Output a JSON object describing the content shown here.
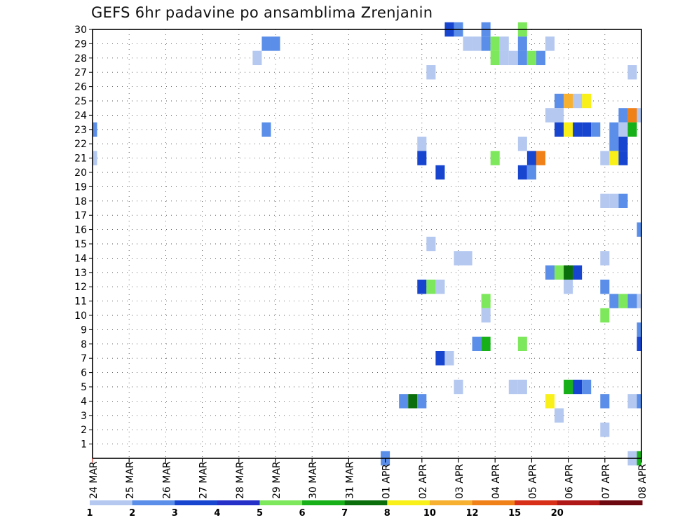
{
  "chart_data": {
    "type": "heatmap",
    "title": "GEFS 6hr padavine po ansamblima Zrenjanin",
    "xlabel": "",
    "ylabel": "",
    "x_unit": "6-hour step (0 = 24 MAR 00Z)",
    "xlim": [
      0,
      60
    ],
    "ylim": [
      0,
      30
    ],
    "x_ticks": [
      {
        "step": 0,
        "label": "24 MAR"
      },
      {
        "step": 4,
        "label": "25 MAR"
      },
      {
        "step": 8,
        "label": "26 MAR"
      },
      {
        "step": 12,
        "label": "27 MAR"
      },
      {
        "step": 16,
        "label": "28 MAR"
      },
      {
        "step": 20,
        "label": "29 MAR"
      },
      {
        "step": 24,
        "label": "30 MAR"
      },
      {
        "step": 28,
        "label": "31 MAR"
      },
      {
        "step": 32,
        "label": "01 APR"
      },
      {
        "step": 36,
        "label": "02 APR"
      },
      {
        "step": 40,
        "label": "03 APR"
      },
      {
        "step": 44,
        "label": "04 APR"
      },
      {
        "step": 48,
        "label": "05 APR"
      },
      {
        "step": 52,
        "label": "06 APR"
      },
      {
        "step": 56,
        "label": "07 APR"
      },
      {
        "step": 60,
        "label": "08 APR"
      }
    ],
    "y_ticks": [
      1,
      2,
      3,
      4,
      5,
      6,
      7,
      8,
      9,
      10,
      11,
      12,
      13,
      14,
      15,
      16,
      17,
      18,
      19,
      20,
      21,
      22,
      23,
      24,
      25,
      26,
      27,
      28,
      29,
      30
    ],
    "grid": true,
    "legend_position": "bottom",
    "colorbar": {
      "labels": [
        "1",
        "2",
        "3",
        "4",
        "5",
        "6",
        "7",
        "8",
        "10",
        "12",
        "15",
        "20"
      ],
      "colors": [
        "#b4c8f0",
        "#5a8ee8",
        "#1845d0",
        "#2430c8",
        "#7ee85c",
        "#18b018",
        "#0a6e0a",
        "#f8f018",
        "#f8b030",
        "#f08018",
        "#d83018",
        "#b01818",
        "#6e0810"
      ]
    },
    "cells_legend": "each cell: [x_step, member, color_index (0 = 1-2, 1 = 2-3, 2 = 3-4, 3 = 4-5, 4 = 5-6, 5 = 6-7, 6 = 7-8, 7 = 8-10, 8 = 10-12, 9 = 12-15)]",
    "cells": [
      [
        0,
        23,
        1
      ],
      [
        0,
        21,
        0
      ],
      [
        18,
        28,
        0
      ],
      [
        19,
        29,
        1
      ],
      [
        20,
        29,
        1
      ],
      [
        19,
        23,
        1
      ],
      [
        32,
        0,
        1
      ],
      [
        60,
        0,
        5
      ],
      [
        59,
        0,
        0
      ],
      [
        39,
        30,
        2
      ],
      [
        40,
        30,
        1
      ],
      [
        43,
        30,
        1
      ],
      [
        47,
        30,
        4
      ],
      [
        41,
        29,
        0
      ],
      [
        42,
        29,
        0
      ],
      [
        43,
        29,
        1
      ],
      [
        44,
        29,
        4
      ],
      [
        45,
        29,
        0
      ],
      [
        47,
        29,
        1
      ],
      [
        50,
        29,
        0
      ],
      [
        44,
        28,
        4
      ],
      [
        45,
        28,
        0
      ],
      [
        46,
        28,
        0
      ],
      [
        47,
        28,
        1
      ],
      [
        48,
        28,
        4
      ],
      [
        49,
        28,
        1
      ],
      [
        37,
        27,
        0
      ],
      [
        59,
        27,
        0
      ],
      [
        51,
        25,
        1
      ],
      [
        52,
        25,
        8
      ],
      [
        53,
        25,
        0
      ],
      [
        54,
        25,
        7
      ],
      [
        50,
        24,
        0
      ],
      [
        51,
        24,
        0
      ],
      [
        58,
        24,
        1
      ],
      [
        59,
        24,
        9
      ],
      [
        60,
        24,
        0
      ],
      [
        51,
        23,
        2
      ],
      [
        52,
        23,
        7
      ],
      [
        53,
        23,
        2
      ],
      [
        54,
        23,
        2
      ],
      [
        55,
        23,
        1
      ],
      [
        57,
        23,
        1
      ],
      [
        58,
        23,
        0
      ],
      [
        59,
        23,
        5
      ],
      [
        36,
        22,
        0
      ],
      [
        47,
        22,
        0
      ],
      [
        57,
        22,
        1
      ],
      [
        58,
        22,
        2
      ],
      [
        36,
        21,
        2
      ],
      [
        44,
        21,
        4
      ],
      [
        48,
        21,
        2
      ],
      [
        49,
        21,
        9
      ],
      [
        56,
        21,
        0
      ],
      [
        57,
        21,
        7
      ],
      [
        58,
        21,
        2
      ],
      [
        38,
        20,
        2
      ],
      [
        47,
        20,
        2
      ],
      [
        48,
        20,
        1
      ],
      [
        56,
        18,
        0
      ],
      [
        57,
        18,
        0
      ],
      [
        58,
        18,
        1
      ],
      [
        60,
        16,
        1
      ],
      [
        37,
        15,
        0
      ],
      [
        40,
        14,
        0
      ],
      [
        41,
        14,
        0
      ],
      [
        56,
        14,
        0
      ],
      [
        50,
        13,
        1
      ],
      [
        51,
        13,
        4
      ],
      [
        52,
        13,
        6
      ],
      [
        53,
        13,
        2
      ],
      [
        36,
        12,
        2
      ],
      [
        37,
        12,
        4
      ],
      [
        38,
        12,
        0
      ],
      [
        52,
        12,
        0
      ],
      [
        56,
        12,
        1
      ],
      [
        43,
        11,
        4
      ],
      [
        57,
        11,
        1
      ],
      [
        58,
        11,
        4
      ],
      [
        59,
        11,
        1
      ],
      [
        60,
        11,
        0
      ],
      [
        43,
        10,
        0
      ],
      [
        56,
        10,
        4
      ],
      [
        60,
        9,
        1
      ],
      [
        42,
        8,
        1
      ],
      [
        43,
        8,
        5
      ],
      [
        47,
        8,
        4
      ],
      [
        60,
        8,
        2
      ],
      [
        38,
        7,
        2
      ],
      [
        39,
        7,
        0
      ],
      [
        40,
        5,
        0
      ],
      [
        46,
        5,
        0
      ],
      [
        47,
        5,
        0
      ],
      [
        52,
        5,
        5
      ],
      [
        53,
        5,
        2
      ],
      [
        54,
        5,
        1
      ],
      [
        34,
        4,
        1
      ],
      [
        35,
        4,
        6
      ],
      [
        36,
        4,
        1
      ],
      [
        50,
        4,
        7
      ],
      [
        56,
        4,
        1
      ],
      [
        59,
        4,
        0
      ],
      [
        60,
        4,
        1
      ],
      [
        51,
        3,
        0
      ],
      [
        56,
        2,
        0
      ]
    ]
  }
}
